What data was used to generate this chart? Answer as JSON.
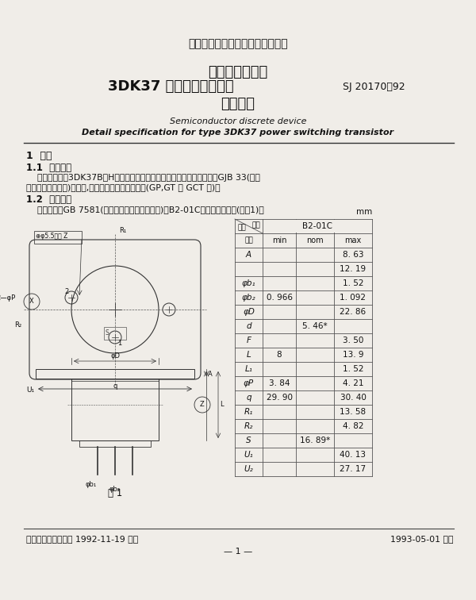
{
  "bg_color": "#f0ede8",
  "text_color": "#1a1a1a",
  "page_title": "中华人民共和国电子行业军用标准",
  "doc_title_line1": "半导体分立器件",
  "doc_title_line2": "3DK37 型功率开关晶体管",
  "doc_title_line3": "详细规范",
  "doc_number": "SJ 20170－92",
  "en_title1": "Semiconductor discrete device",
  "en_title2": "Detail specification for type 3DK37 power switching transistor",
  "section1": "1  范围",
  "section11": "1.1  主题内容",
  "body1a": "    本规范规定了3DK37B～H型功率开关晶体管的详细要求。每种器件均按GJB 33(半导",
  "body1b": "体分立器件总规范)的规定,提供产品保证的三个等级(GP,GT 和 GCT 级)。",
  "section12": "1.2  外形尺寸",
  "body2": "    外形尺寸按GB 7581(半导体分立器件外形尺寸)的B2-01C型及如下的规定(见图1)。",
  "mm_label": "mm",
  "fig_label": "图 1",
  "footer_left": "中国电子工业总公司 1992-11-19 发布",
  "footer_right": "1993-05-01 实施",
  "page_num": "— 1 —",
  "table_data": [
    [
      "A",
      "",
      "",
      "8. 63"
    ],
    [
      "",
      "",
      "",
      "12. 19"
    ],
    [
      "φb₁",
      "",
      "",
      "1. 52"
    ],
    [
      "φb₂",
      "0. 966",
      "",
      "1. 092"
    ],
    [
      "φD",
      "",
      "",
      "22. 86"
    ],
    [
      "d",
      "",
      "5. 46*",
      ""
    ],
    [
      "F",
      "",
      "",
      "3. 50"
    ],
    [
      "L",
      "8",
      "",
      "13. 9"
    ],
    [
      "L₁",
      "",
      "",
      "1. 52"
    ],
    [
      "φP",
      "3. 84",
      "",
      "4. 21"
    ],
    [
      "q",
      "29. 90",
      "",
      "30. 40"
    ],
    [
      "R₁",
      "",
      "",
      "13. 58"
    ],
    [
      "R₂",
      "",
      "",
      "4. 82"
    ],
    [
      "S",
      "",
      "16. 89*",
      ""
    ],
    [
      "U₁",
      "",
      "",
      "40. 13"
    ],
    [
      "U₂",
      "",
      "",
      "27. 17"
    ]
  ]
}
